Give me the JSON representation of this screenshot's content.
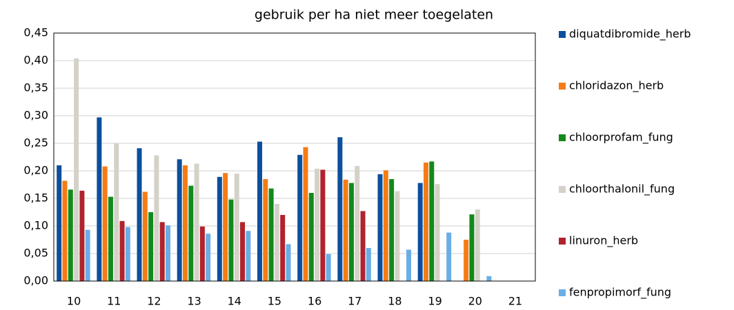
{
  "chart_data": {
    "type": "bar",
    "title": "gebruik per ha niet meer toegelaten",
    "categories": [
      "10",
      "11",
      "12",
      "13",
      "14",
      "15",
      "16",
      "17",
      "18",
      "19",
      "20",
      "21"
    ],
    "series": [
      {
        "name": "diquatdibromide_herb",
        "color": "#0b4f9e",
        "values": [
          0.21,
          0.297,
          0.241,
          0.221,
          0.189,
          0.253,
          0.229,
          0.261,
          0.194,
          0.178,
          null,
          null
        ]
      },
      {
        "name": "chloridazon_herb",
        "color": "#f57c14",
        "values": [
          0.182,
          0.208,
          0.162,
          0.21,
          0.196,
          0.185,
          0.243,
          0.184,
          0.201,
          0.215,
          0.075,
          null
        ]
      },
      {
        "name": "chloorprofam_fung",
        "color": "#13891c",
        "values": [
          0.166,
          0.153,
          0.125,
          0.173,
          0.148,
          0.168,
          0.16,
          0.178,
          0.185,
          0.217,
          0.121,
          null
        ]
      },
      {
        "name": "chloorthalonil_fung",
        "color": "#d4d2c8",
        "values": [
          0.404,
          0.25,
          0.228,
          0.213,
          0.195,
          0.14,
          0.204,
          0.209,
          0.163,
          0.176,
          0.13,
          null
        ]
      },
      {
        "name": "linuron_herb",
        "color": "#b0232e",
        "values": [
          0.164,
          0.109,
          0.107,
          0.099,
          0.107,
          0.12,
          0.202,
          0.127,
          null,
          null,
          null,
          null
        ]
      },
      {
        "name": "fenpropimorf_fung",
        "color": "#6aaee6",
        "values": [
          0.093,
          0.098,
          0.101,
          0.086,
          0.091,
          0.067,
          0.049,
          0.06,
          0.057,
          0.088,
          0.009,
          null
        ]
      }
    ],
    "ylim": [
      0,
      0.45
    ],
    "yticks": [
      {
        "value": 0,
        "label": "0,00"
      },
      {
        "value": 0.05,
        "label": "0,05"
      },
      {
        "value": 0.1,
        "label": "0,10"
      },
      {
        "value": 0.15,
        "label": "0,15"
      },
      {
        "value": 0.2,
        "label": "0,20"
      },
      {
        "value": 0.25,
        "label": "0,25"
      },
      {
        "value": 0.3,
        "label": "0,30"
      },
      {
        "value": 0.35,
        "label": "0,35"
      },
      {
        "value": 0.4,
        "label": "0,40"
      },
      {
        "value": 0.45,
        "label": "0,45"
      }
    ],
    "grid": true
  }
}
